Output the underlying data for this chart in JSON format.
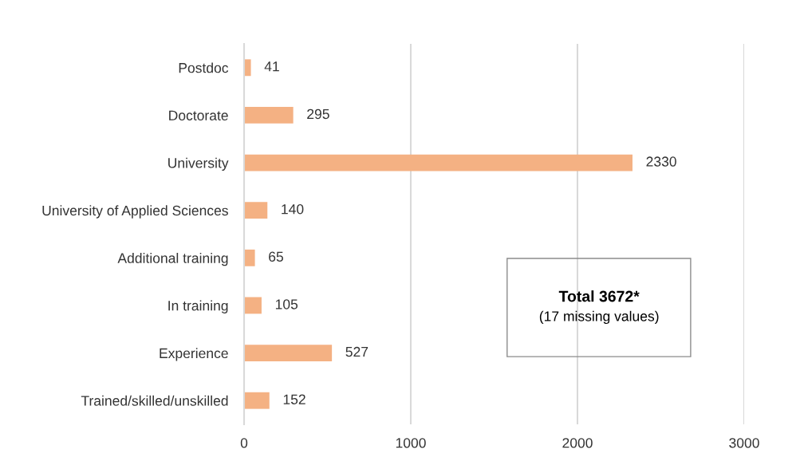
{
  "chart_data": {
    "type": "bar",
    "orientation": "horizontal",
    "categories": [
      "Postdoc",
      "Doctorate",
      "University",
      "University of Applied Sciences",
      "Additional training",
      "In training",
      "Experience",
      "Trained/skilled/unskilled"
    ],
    "values": [
      41,
      295,
      2330,
      140,
      65,
      105,
      527,
      152
    ],
    "color": "#f4b183",
    "xlim": [
      0,
      3000
    ],
    "xticks": [
      0,
      1000,
      2000,
      3000
    ],
    "grid": "x",
    "data_labels": true,
    "annotations": [
      "Total 3672*",
      "(17 missing values)"
    ]
  }
}
